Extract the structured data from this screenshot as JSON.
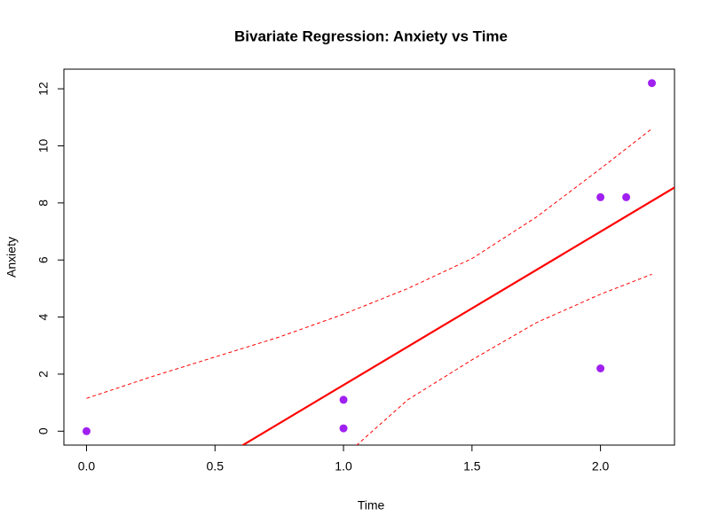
{
  "chart_data": {
    "type": "scatter",
    "title": "Bivariate Regression: Anxiety vs Time",
    "x_label": "Time",
    "y_label": "Anxiety",
    "xlim": [
      -0.088,
      2.288
    ],
    "ylim": [
      -0.488,
      12.688
    ],
    "xticks": [
      {
        "value": 0,
        "label": "0.0"
      },
      0.5,
      {
        "value": 1,
        "label": "1.0"
      },
      1.5,
      {
        "value": 2,
        "label": "2.0"
      }
    ],
    "yticks": [
      0,
      2,
      4,
      6,
      8,
      10,
      12
    ],
    "points": {
      "color": "#a020f0",
      "x": [
        0,
        1,
        1,
        2,
        2.1,
        2,
        2.2
      ],
      "values": [
        0,
        1.1,
        0.1,
        8.2,
        8.2,
        2.2,
        12.2
      ]
    },
    "lines": [
      {
        "style": "solid",
        "color": "#ff0000",
        "x": [
          0.606,
          2.288
        ],
        "values": [
          -0.5,
          8.54
        ]
      },
      {
        "style": "dashed",
        "color": "#ff0000",
        "x": [
          0,
          0.25,
          0.5,
          0.75,
          1.0,
          1.25,
          1.5,
          1.75,
          2.0,
          2.2
        ],
        "values": [
          1.15,
          1.9,
          2.6,
          3.3,
          4.1,
          5.0,
          6.05,
          7.5,
          9.2,
          10.6
        ]
      },
      {
        "style": "dashed",
        "color": "#ff0000",
        "x": [
          1.05,
          1.25,
          1.5,
          1.75,
          2.0,
          2.2
        ],
        "values": [
          -0.5,
          1.1,
          2.5,
          3.8,
          4.8,
          5.5
        ]
      }
    ]
  }
}
